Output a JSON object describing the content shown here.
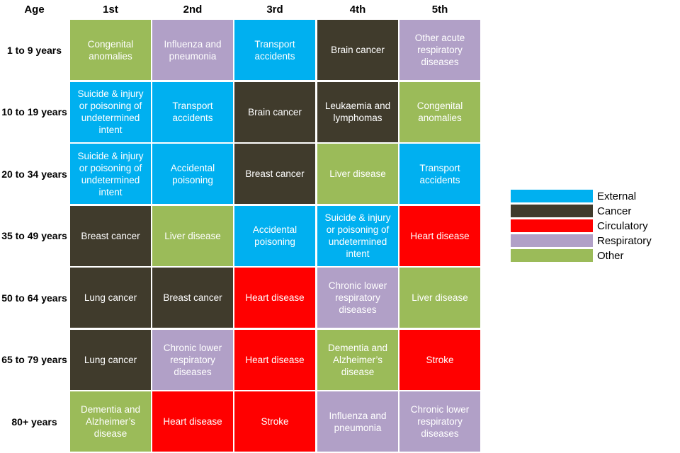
{
  "chart_data": {
    "type": "table",
    "corner_label": "Age",
    "columns": [
      "1st",
      "2nd",
      "3rd",
      "4th",
      "5th"
    ],
    "rows": [
      {
        "age": "1 to 9 years",
        "cells": [
          {
            "label": "Congenital anomalies",
            "category": "Other"
          },
          {
            "label": "Influenza and pneumonia",
            "category": "Respiratory"
          },
          {
            "label": "Transport accidents",
            "category": "External"
          },
          {
            "label": "Brain cancer",
            "category": "Cancer"
          },
          {
            "label": "Other acute respiratory diseases",
            "category": "Respiratory"
          }
        ]
      },
      {
        "age": "10 to 19 years",
        "cells": [
          {
            "label": "Suicide & injury or poisoning of undetermined intent",
            "category": "External"
          },
          {
            "label": "Transport accidents",
            "category": "External"
          },
          {
            "label": "Brain cancer",
            "category": "Cancer"
          },
          {
            "label": "Leukaemia and lymphomas",
            "category": "Cancer"
          },
          {
            "label": "Congenital anomalies",
            "category": "Other"
          }
        ]
      },
      {
        "age": "20 to 34 years",
        "cells": [
          {
            "label": "Suicide & injury or poisoning of undetermined intent",
            "category": "External"
          },
          {
            "label": "Accidental poisoning",
            "category": "External"
          },
          {
            "label": "Breast cancer",
            "category": "Cancer"
          },
          {
            "label": "Liver disease",
            "category": "Other"
          },
          {
            "label": "Transport accidents",
            "category": "External"
          }
        ]
      },
      {
        "age": "35 to 49 years",
        "cells": [
          {
            "label": "Breast cancer",
            "category": "Cancer"
          },
          {
            "label": "Liver disease",
            "category": "Other"
          },
          {
            "label": "Accidental poisoning",
            "category": "External"
          },
          {
            "label": "Suicide & injury or poisoning of undetermined intent",
            "category": "External"
          },
          {
            "label": "Heart disease",
            "category": "Circulatory"
          }
        ]
      },
      {
        "age": "50 to 64 years",
        "cells": [
          {
            "label": "Lung cancer",
            "category": "Cancer"
          },
          {
            "label": "Breast cancer",
            "category": "Cancer"
          },
          {
            "label": "Heart disease",
            "category": "Circulatory"
          },
          {
            "label": "Chronic lower respiratory diseases",
            "category": "Respiratory"
          },
          {
            "label": "Liver disease",
            "category": "Other"
          }
        ]
      },
      {
        "age": "65 to 79 years",
        "cells": [
          {
            "label": "Lung cancer",
            "category": "Cancer"
          },
          {
            "label": "Chronic lower respiratory diseases",
            "category": "Respiratory"
          },
          {
            "label": "Heart disease",
            "category": "Circulatory"
          },
          {
            "label": "Dementia and Alzheimer’s disease",
            "category": "Other"
          },
          {
            "label": "Stroke",
            "category": "Circulatory"
          }
        ]
      },
      {
        "age": "80+ years",
        "cells": [
          {
            "label": "Dementia and Alzheimer’s disease",
            "category": "Other"
          },
          {
            "label": "Heart disease",
            "category": "Circulatory"
          },
          {
            "label": "Stroke",
            "category": "Circulatory"
          },
          {
            "label": "Influenza and pneumonia",
            "category": "Respiratory"
          },
          {
            "label": "Chronic lower respiratory diseases",
            "category": "Respiratory"
          }
        ]
      }
    ],
    "legend": [
      {
        "name": "External",
        "color": "#00b0f0"
      },
      {
        "name": "Cancer",
        "color": "#403b2c"
      },
      {
        "name": "Circulatory",
        "color": "#ff0000"
      },
      {
        "name": "Respiratory",
        "color": "#b1a0c7"
      },
      {
        "name": "Other",
        "color": "#9bbb59"
      }
    ],
    "legend_position": "right"
  }
}
